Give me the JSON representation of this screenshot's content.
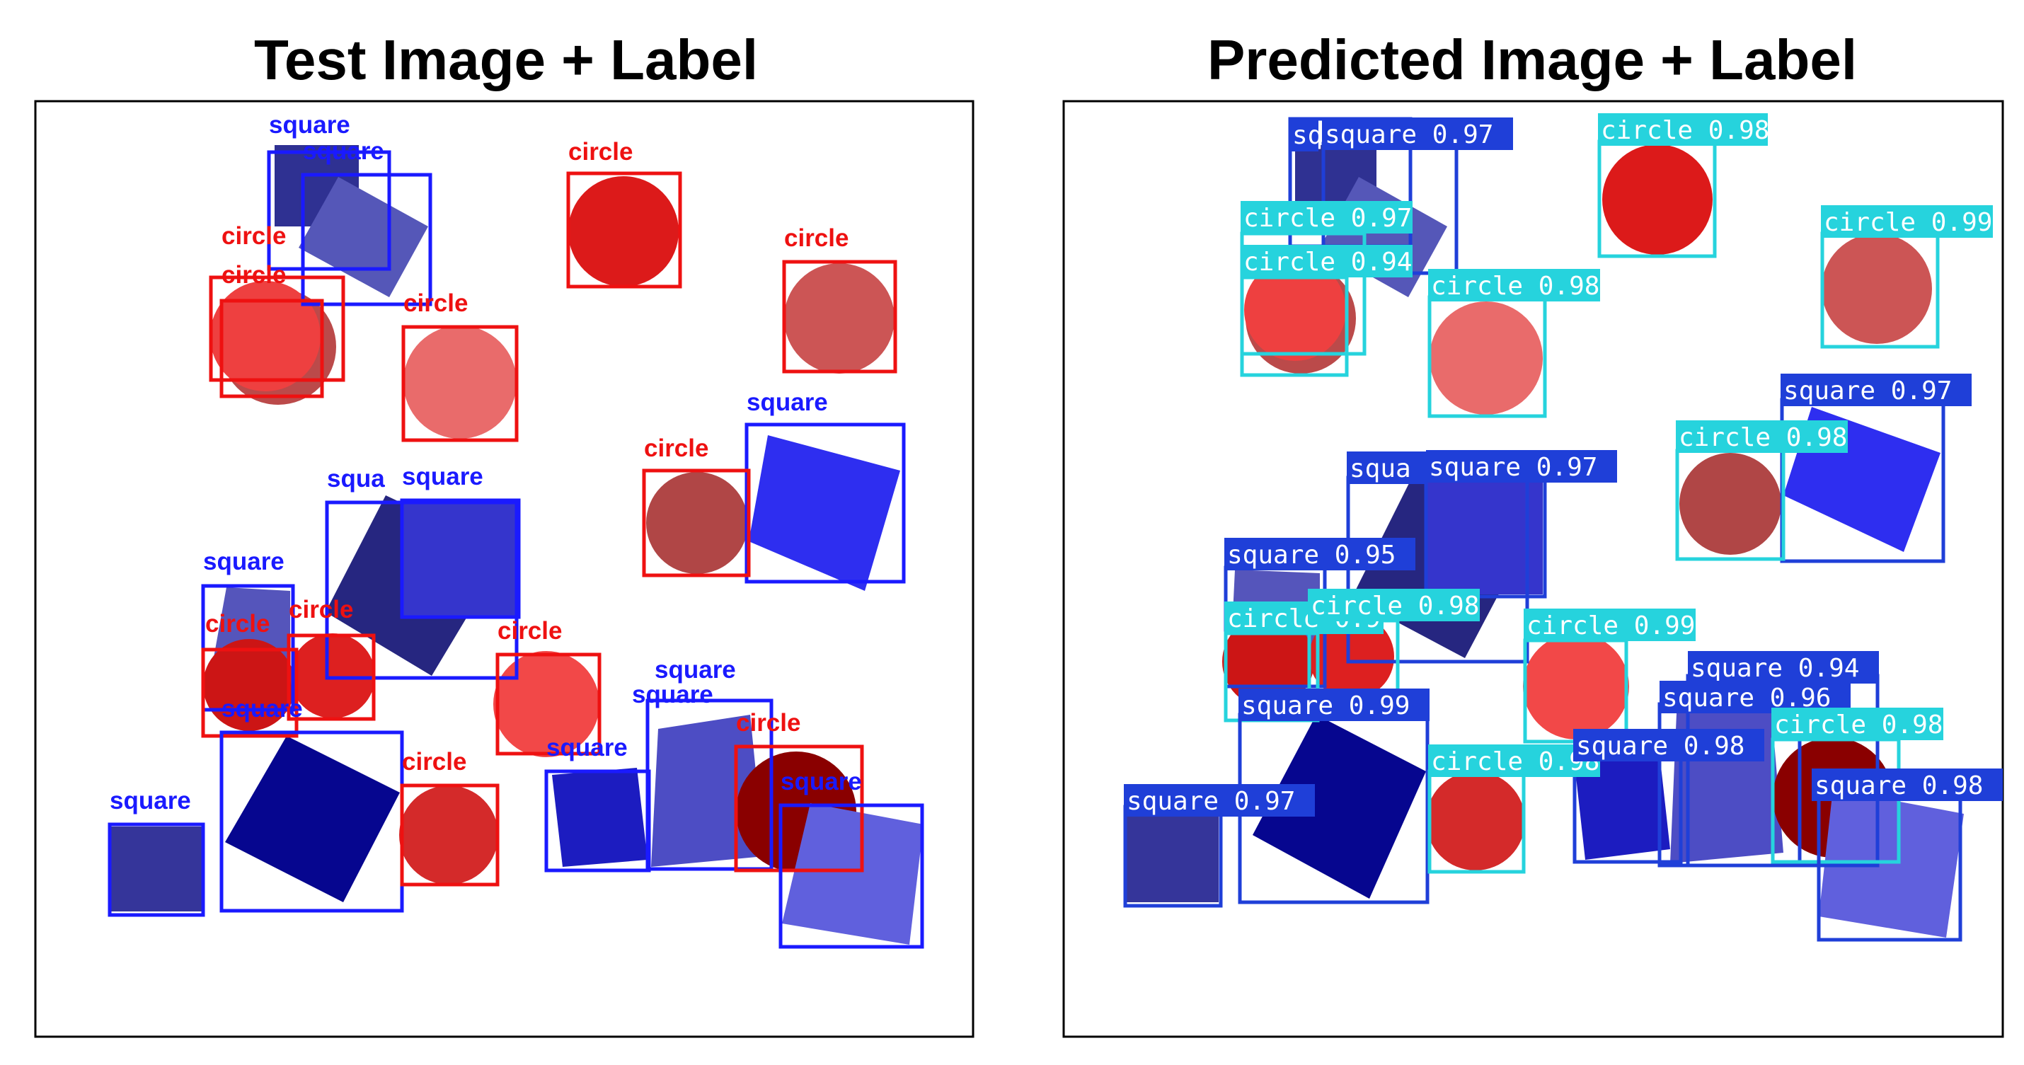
{
  "titles": {
    "left": "Test Image + Label",
    "right": "Predicted Image + Label"
  },
  "colors": {
    "label_square": "#1a1aff",
    "label_circle": "#ee1111",
    "pred_square_box": "#1f3fd8",
    "pred_circle_box": "#26d3dd",
    "pred_label_text": "#ffffff"
  },
  "test_labels": [
    "square",
    "square",
    "circle",
    "circle",
    "circle",
    "circle",
    "circle",
    "square",
    "circle",
    "squa",
    "square",
    "square",
    "circle",
    "circle",
    "circle",
    "square",
    "square",
    "circle",
    "square",
    "square",
    "circle",
    "square",
    "square",
    "circle"
  ],
  "predicted_labels": [
    "sq",
    "square 0.97",
    "circle 0.98",
    "circle 0.97",
    "circle 0.94",
    "circle 0.98",
    "circle 0.99",
    "square 0.97",
    "circle 0.98",
    "squa",
    "square 0.97",
    "square 0.95",
    "circle 0.9",
    "circle 0.98",
    "circle 0.99",
    "square 0.94",
    "square 0.96",
    "square 0.99",
    "circle 0.98",
    "square 0.98",
    "circle 0.98",
    "square 0.97",
    "square 0.98"
  ]
}
